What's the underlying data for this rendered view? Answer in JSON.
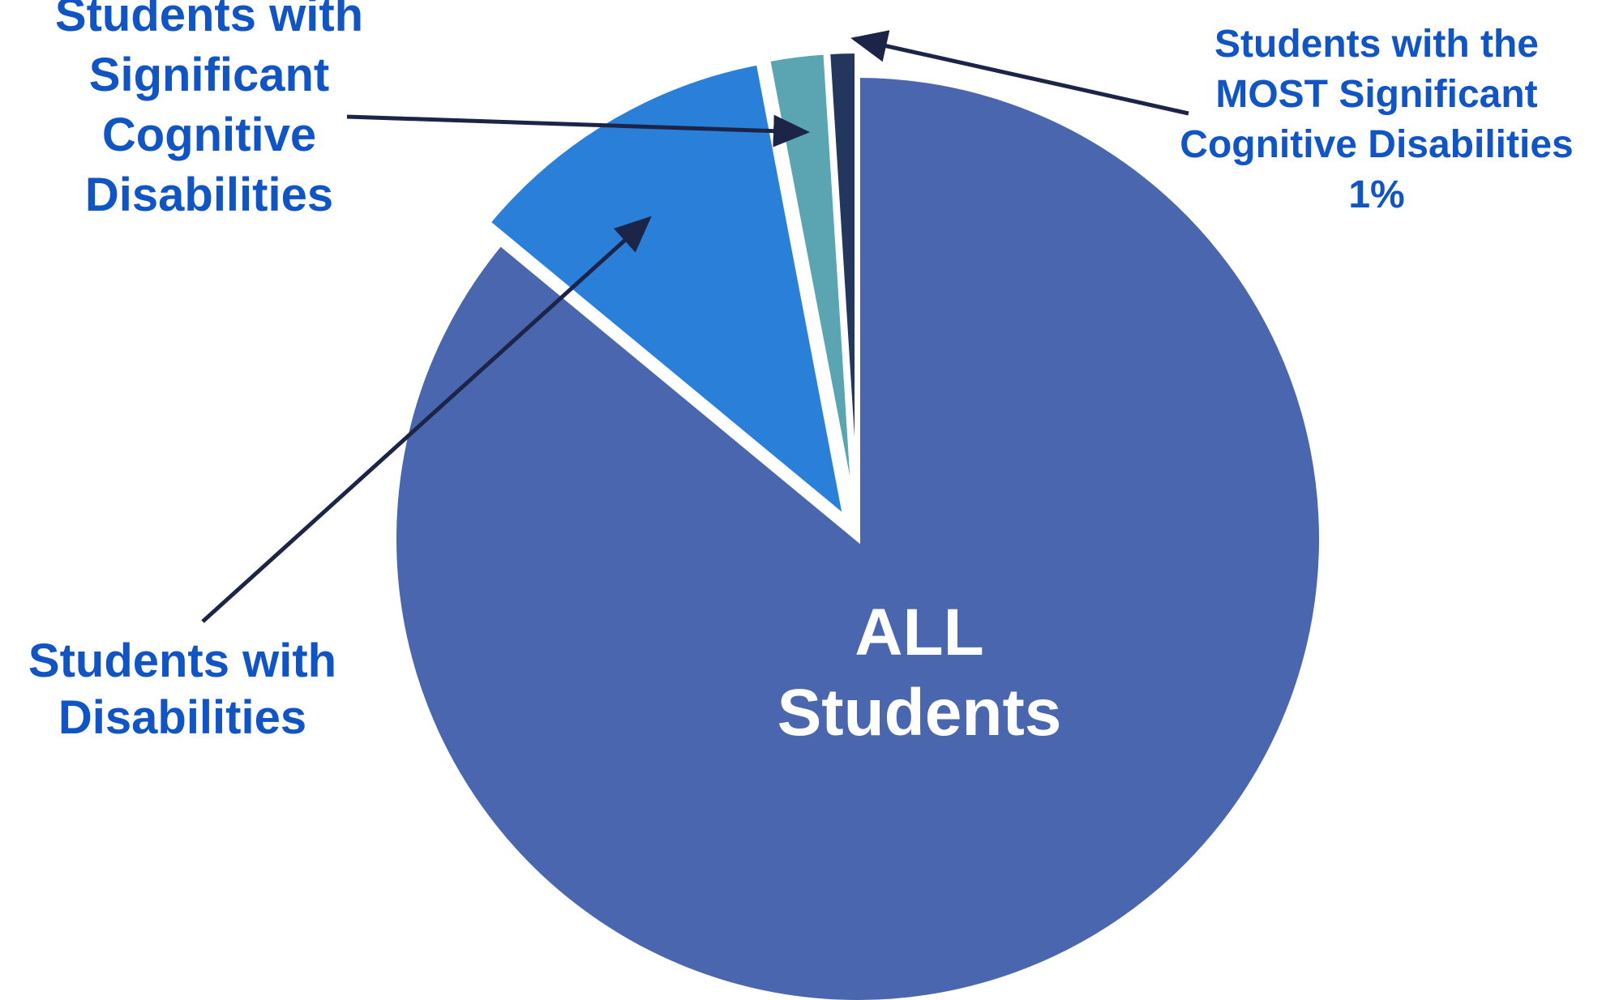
{
  "chart_data": {
    "type": "pie",
    "slices": [
      {
        "label_lines": [
          "ALL",
          "Students"
        ],
        "value": 86,
        "color": "#4a66ae",
        "text_color": "#ffffff"
      },
      {
        "label_lines": [
          "Students with",
          "Disabilities"
        ],
        "value": 11,
        "color": "#2a7fd9",
        "text_color": "#1155c4"
      },
      {
        "label_lines": [
          "Students with",
          "Significant",
          "Cognitive",
          "Disabilities"
        ],
        "value": 2,
        "color": "#5ba5b2",
        "text_color": "#1155c4"
      },
      {
        "label_lines": [
          "Students with the",
          "MOST Significant",
          "Cognitive Disabilities",
          "1%"
        ],
        "value": 1,
        "color": "#23365e",
        "text_color": "#1155c4"
      }
    ],
    "legend": "none",
    "annotations": "callout arrows from labels to slices"
  },
  "colors": {
    "arrow": "#1c2547",
    "separator": "#ffffff"
  }
}
